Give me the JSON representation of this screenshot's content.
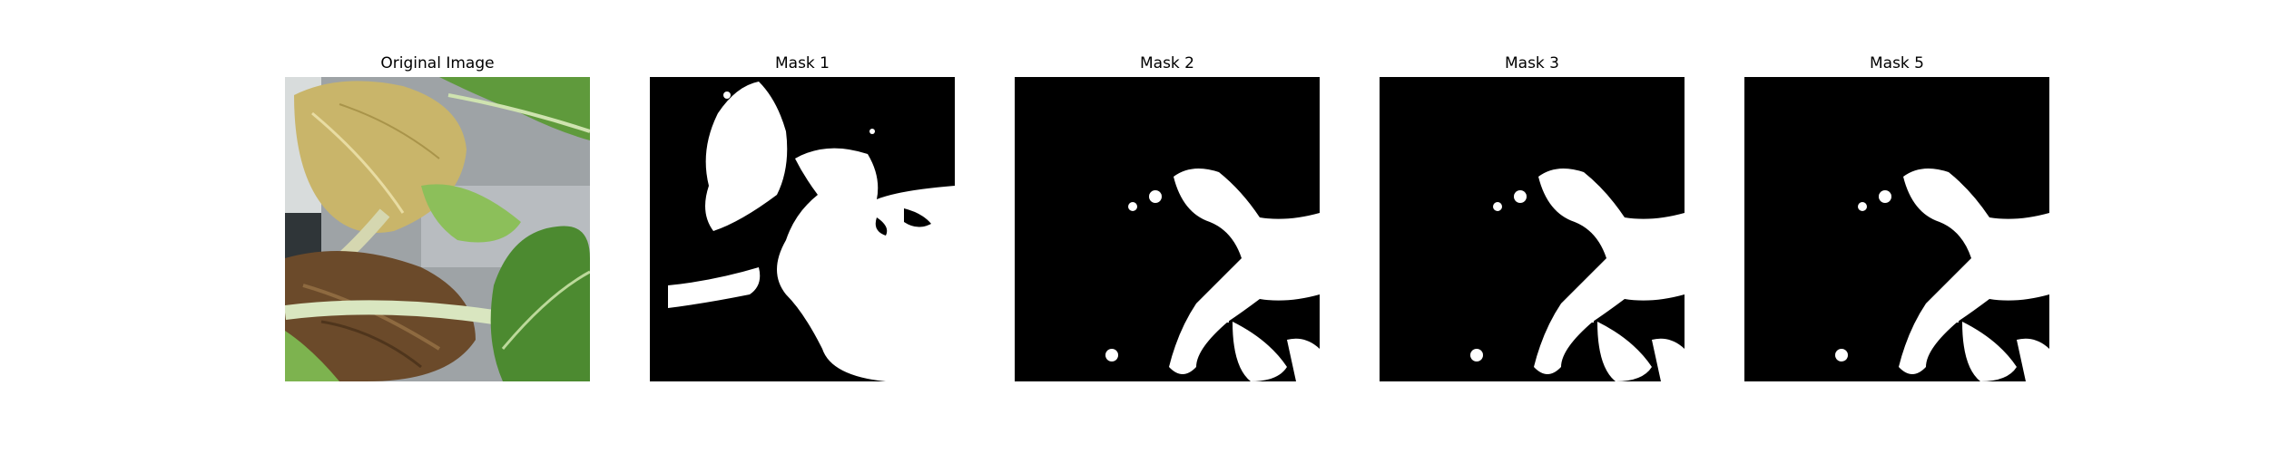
{
  "figure": {
    "panels": [
      {
        "title": "Original Image",
        "kind": "photo"
      },
      {
        "title": "Mask 1",
        "kind": "mask"
      },
      {
        "title": "Mask 2",
        "kind": "mask"
      },
      {
        "title": "Mask 3",
        "kind": "mask"
      },
      {
        "title": "Mask 5",
        "kind": "mask"
      }
    ],
    "colors": {
      "mask_background": "#000000",
      "mask_foreground": "#ffffff",
      "leaf_yellow": "#c9b56a",
      "leaf_green": "#5f9a3c",
      "leaf_brown": "#6b4a2a"
    }
  }
}
